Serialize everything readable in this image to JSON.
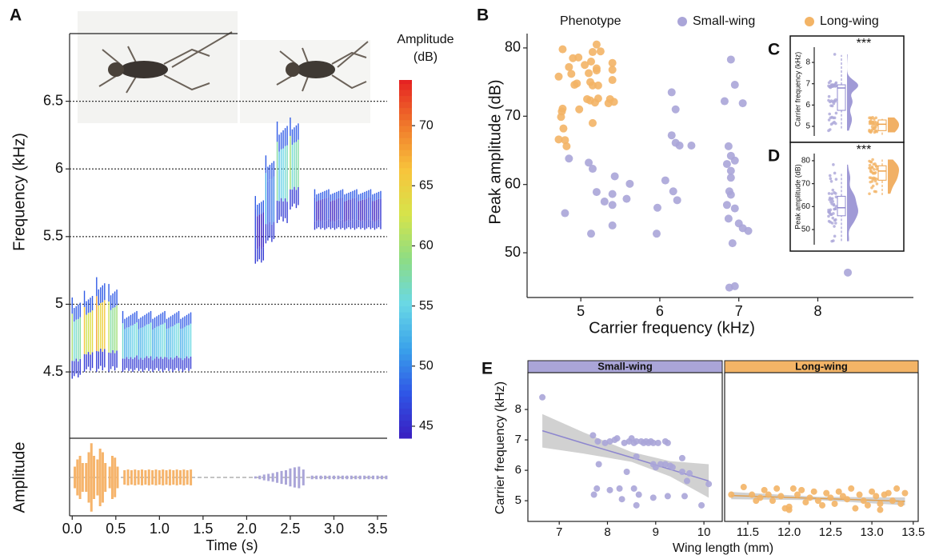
{
  "chart_data": [
    {
      "type": "spectrogram",
      "panel": "A",
      "ylabel": "Frequency (kHz)",
      "xlabel": "Time (s)",
      "amplitude_label": "Amplitude",
      "xlim": [
        -0.03,
        3.61
      ],
      "xticks": [
        {
          "value": 0,
          "label": "0.0"
        },
        0.5,
        {
          "value": 1,
          "label": "1.0"
        },
        1.5,
        {
          "value": 2,
          "label": "2.0"
        },
        2.5,
        {
          "value": 3,
          "label": "3.0"
        },
        3.5
      ],
      "ylim": [
        4.01,
        7.0
      ],
      "yticks": [
        4.5,
        5,
        5.5,
        6,
        6.5
      ],
      "grid": true,
      "colorbar": {
        "title": "Amplitude",
        "unit": "(dB)",
        "lim": [
          44,
          73.8
        ],
        "ticks": [
          45,
          50,
          55,
          60,
          65,
          70
        ],
        "colors": [
          "#3a1ec0",
          "#2f55e6",
          "#3aa2ea",
          "#69d8e6",
          "#8ddc84",
          "#d6e44a",
          "#f8c43c",
          "#f0782b",
          "#e52222"
        ]
      },
      "syllables": [
        {
          "t0": 0.0,
          "t1": 0.1,
          "fmin": 4.45,
          "fmax": 5.05,
          "amplitude": 60
        },
        {
          "t0": 0.14,
          "t1": 0.24,
          "fmin": 4.5,
          "fmax": 5.1,
          "amplitude": 66
        },
        {
          "t0": 0.28,
          "t1": 0.38,
          "fmin": 4.5,
          "fmax": 5.2,
          "amplitude": 68
        },
        {
          "t0": 0.42,
          "t1": 0.52,
          "fmin": 4.5,
          "fmax": 5.15,
          "amplitude": 62
        },
        {
          "t0": 0.58,
          "t1": 1.36,
          "fmin": 4.5,
          "fmax": 4.95,
          "amplitude": 56
        },
        {
          "t0": 2.1,
          "t1": 2.2,
          "fmin": 5.3,
          "fmax": 5.8,
          "amplitude": 47
        },
        {
          "t0": 2.22,
          "t1": 2.32,
          "fmin": 5.45,
          "fmax": 6.1,
          "amplitude": 52
        },
        {
          "t0": 2.35,
          "t1": 2.47,
          "fmin": 5.6,
          "fmax": 6.35,
          "amplitude": 58
        },
        {
          "t0": 2.5,
          "t1": 2.6,
          "fmin": 5.7,
          "fmax": 6.38,
          "amplitude": 60
        },
        {
          "t0": 2.78,
          "t1": 3.55,
          "fmin": 5.55,
          "fmax": 5.85,
          "amplitude": 47
        }
      ],
      "waveform_ylim": [
        -1,
        1
      ],
      "waveforms": [
        {
          "color": "#f6b46b",
          "x": [
            0.03,
            0.06,
            0.09,
            0.12,
            0.16,
            0.19,
            0.22,
            0.25,
            0.29,
            0.32,
            0.35,
            0.38,
            0.43,
            0.46,
            0.49,
            0.52,
            0.6,
            0.64,
            0.68,
            0.72,
            0.76,
            0.8,
            0.84,
            0.88,
            0.92,
            0.96,
            1.0,
            1.04,
            1.08,
            1.12,
            1.16,
            1.2,
            1.24,
            1.28,
            1.32,
            1.36
          ],
          "values": [
            0.3,
            0.5,
            0.6,
            0.4,
            0.4,
            0.7,
            0.95,
            0.6,
            0.5,
            0.8,
            0.7,
            0.4,
            0.3,
            0.6,
            0.55,
            0.3,
            0.2,
            0.22,
            0.2,
            0.22,
            0.2,
            0.22,
            0.2,
            0.22,
            0.2,
            0.22,
            0.2,
            0.22,
            0.2,
            0.22,
            0.2,
            0.22,
            0.2,
            0.22,
            0.2,
            0.22
          ]
        },
        {
          "color": "#aaa5d8",
          "x": [
            2.1,
            2.15,
            2.2,
            2.25,
            2.3,
            2.35,
            2.4,
            2.45,
            2.5,
            2.55,
            2.6,
            2.65,
            2.75,
            2.8,
            2.85,
            2.9,
            2.95,
            3.0,
            3.05,
            3.1,
            3.15,
            3.2,
            3.25,
            3.3,
            3.35,
            3.4,
            3.45,
            3.5,
            3.55,
            3.6
          ],
          "values": [
            0.03,
            0.05,
            0.08,
            0.1,
            0.12,
            0.15,
            0.18,
            0.2,
            0.25,
            0.28,
            0.3,
            0.22,
            0.05,
            0.05,
            0.05,
            0.05,
            0.05,
            0.05,
            0.05,
            0.05,
            0.05,
            0.05,
            0.05,
            0.05,
            0.05,
            0.05,
            0.05,
            0.05,
            0.05,
            0.05
          ]
        }
      ]
    },
    {
      "type": "scatter",
      "panel": "B",
      "xlabel": "Carrier frequency (kHz)",
      "ylabel": "Peak amplitude (dB)",
      "legend_title": "Phenotype",
      "xlim": [
        4.32,
        9.21
      ],
      "xticks": [
        5,
        6,
        7,
        8
      ],
      "ylim": [
        43.45,
        82.1
      ],
      "yticks": [
        50,
        60,
        70,
        80
      ],
      "grid": false,
      "series": [
        {
          "name": "Small-wing",
          "color": "#aaa5d8",
          "x": [
            4.8,
            4.85,
            5.1,
            5.15,
            5.2,
            5.13,
            5.3,
            5.4,
            5.43,
            5.4,
            5.4,
            5.62,
            5.58,
            5.97,
            5.96,
            6.07,
            6.17,
            6.22,
            6.15,
            6.2,
            6.15,
            6.2,
            6.25,
            6.4,
            6.82,
            6.87,
            6.9,
            6.95,
            7.05,
            6.85,
            6.9,
            6.95,
            6.9,
            6.88,
            6.9,
            6.85,
            6.95,
            6.87,
            6.92,
            7.0,
            7.05,
            7.12,
            6.88,
            6.95,
            8.38,
            6.9
          ],
          "values": [
            55.8,
            63.8,
            63.2,
            62.3,
            58.9,
            52.8,
            57.5,
            58.6,
            61.2,
            57,
            54,
            60.1,
            57.9,
            56.6,
            52.8,
            60.6,
            59,
            57.7,
            73.5,
            71,
            67.2,
            66.1,
            65.7,
            65.7,
            72.2,
            65.6,
            78.3,
            74.6,
            71.9,
            63,
            62,
            63.5,
            61,
            59,
            58.5,
            57,
            56.5,
            55,
            51.4,
            54.3,
            53.6,
            53.2,
            44.9,
            45.1,
            47.1,
            64.2
          ]
        },
        {
          "name": "Long-wing",
          "color": "#f3b466",
          "x": [
            4.77,
            4.72,
            4.85,
            4.9,
            4.97,
            5.05,
            5.13,
            5.15,
            5.2,
            4.88,
            4.95,
            5.1,
            5.2,
            5.12,
            5.15,
            5.22,
            5.4,
            5.4,
            5.4,
            4.98,
            5.08,
            5.12,
            5.18,
            5.22,
            5.37,
            5.42,
            5.35,
            4.77,
            4.75,
            4.76,
            4.78,
            5.15,
            4.72,
            4.8,
            4.82,
            5.25,
            5.2,
            4.92
          ],
          "values": [
            79.8,
            75.8,
            77.2,
            78.5,
            78.6,
            77.5,
            78,
            79.4,
            80.5,
            76.2,
            74.8,
            76.3,
            76.7,
            75,
            74.5,
            74.5,
            77.8,
            76.8,
            75.3,
            71,
            72.5,
            72.3,
            72,
            72.6,
            72.5,
            72.1,
            71.9,
            71.1,
            69.9,
            70.7,
            68.2,
            69,
            66.6,
            66.5,
            65.6,
            79.5,
            77,
            74.6
          ]
        }
      ]
    },
    {
      "type": "box",
      "panel": "C",
      "ylabel": "Carrier frequency (kHz)",
      "annotation": "***",
      "ylim": [
        4.25,
        9.24
      ],
      "yticks": [
        5,
        6,
        7,
        8
      ],
      "boxes": [
        {
          "color": "#8f88cf",
          "min": 4.9,
          "q1": 5.75,
          "median": 6.8,
          "q3": 6.95,
          "max": 8.35
        },
        {
          "color": "#eea24a",
          "min": 4.6,
          "q1": 4.8,
          "median": 5.1,
          "q3": 5.3,
          "max": 5.35
        }
      ]
    },
    {
      "type": "box",
      "panel": "D",
      "ylabel": "Peak amplitude (dB)",
      "annotation": "***",
      "ylim": [
        40.6,
        88
      ],
      "yticks": [
        50,
        60,
        70,
        80
      ],
      "boxes": [
        {
          "color": "#8f88cf",
          "min": 45,
          "q1": 56,
          "median": 59.5,
          "q3": 64.5,
          "max": 74.5
        },
        {
          "color": "#eea24a",
          "min": 65,
          "q1": 71.5,
          "median": 75.5,
          "q3": 77.8,
          "max": 80.5
        }
      ]
    },
    {
      "type": "facet_scatter",
      "panel": "E",
      "xlabel": "Wing length (mm)",
      "ylabel": "Carrier frequency (kHz)",
      "ylim": [
        4.32,
        9.21
      ],
      "yticks": [
        5,
        6,
        7,
        8
      ],
      "facets": [
        {
          "title": "Small-wing",
          "color": "#aaa5d8",
          "line_color": "#8d86cf",
          "xlim": [
            6.35,
            10.38
          ],
          "xticks": [
            7,
            8,
            9,
            10
          ],
          "x": [
            6.65,
            7.7,
            7.8,
            7.95,
            8.05,
            8.15,
            8.2,
            8.35,
            8.45,
            8.5,
            8.55,
            8.6,
            8.7,
            8.75,
            8.8,
            8.85,
            8.9,
            8.95,
            9.05,
            9.2,
            9.25,
            7.82,
            8.6,
            8.95,
            9.0,
            9.1,
            9.2,
            9.3,
            9.35,
            9.55,
            9.55,
            9.65,
            9.7,
            7.78,
            7.72,
            8.05,
            8.25,
            8.55,
            8.65,
            8.6,
            8.3,
            8.95,
            9.25,
            9.6,
            9.95,
            10.1,
            8.4
          ],
          "values": [
            8.4,
            7.15,
            6.95,
            6.9,
            6.95,
            7.0,
            7.05,
            6.9,
            6.95,
            7.05,
            6.9,
            6.95,
            6.95,
            6.9,
            6.95,
            6.9,
            6.95,
            6.9,
            6.9,
            6.95,
            6.9,
            6.2,
            6.45,
            6.2,
            6.1,
            6.2,
            6.2,
            6.15,
            6.1,
            6.4,
            5.95,
            5.65,
            5.9,
            5.4,
            5.2,
            5.35,
            5.4,
            5.4,
            5.2,
            4.85,
            5.05,
            5.1,
            5.15,
            5.15,
            4.85,
            5.55,
            5.95
          ],
          "fit": {
            "x": [
              6.65,
              7.5,
              8.5,
              9.3,
              10.1
            ],
            "y": [
              7.3,
              6.89,
              6.42,
              6.03,
              5.65
            ],
            "lower": [
              6.75,
              6.55,
              6.28,
              5.8,
              5.1
            ],
            "upper": [
              7.85,
              7.25,
              6.6,
              6.3,
              6.2
            ]
          }
        },
        {
          "title": "Long-wing",
          "color": "#f3b466",
          "line_color": "#e0a050",
          "xlim": [
            11.22,
            13.56
          ],
          "xticks": [
            11.5,
            {
              "value": 12,
              "label": "12.0"
            },
            12.5,
            {
              "value": 13,
              "label": "13.0"
            },
            13.5
          ],
          "x": [
            11.3,
            11.45,
            11.55,
            11.65,
            11.7,
            11.75,
            11.8,
            11.85,
            11.9,
            11.95,
            12.0,
            12.05,
            12.1,
            12.15,
            12.2,
            12.25,
            12.3,
            12.35,
            12.4,
            12.45,
            12.5,
            12.55,
            12.6,
            12.65,
            12.7,
            12.75,
            12.8,
            12.85,
            12.9,
            12.95,
            13.0,
            13.05,
            13.1,
            13.15,
            13.2,
            13.25,
            13.3,
            13.35,
            13.4,
            11.6,
            12.0,
            13.1
          ],
          "values": [
            5.2,
            5.45,
            5.2,
            5.1,
            5.35,
            5.2,
            5.0,
            5.4,
            5.15,
            4.75,
            4.8,
            5.4,
            5.2,
            5.35,
            4.95,
            5.1,
            5.3,
            5.0,
            4.85,
            5.25,
            5.1,
            4.9,
            5.3,
            5.15,
            5.05,
            5.4,
            4.75,
            5.2,
            5.0,
            4.85,
            5.3,
            5.15,
            4.9,
            5.2,
            5.25,
            5.0,
            5.4,
            4.9,
            5.25,
            5.0,
            4.7,
            4.7
          ],
          "fit": {
            "x": [
              11.3,
              12.35,
              13.4
            ],
            "y": [
              5.17,
              5.075,
              4.98
            ],
            "lower": [
              5.05,
              5.02,
              4.85
            ],
            "upper": [
              5.29,
              5.13,
              5.11
            ]
          }
        }
      ]
    }
  ]
}
